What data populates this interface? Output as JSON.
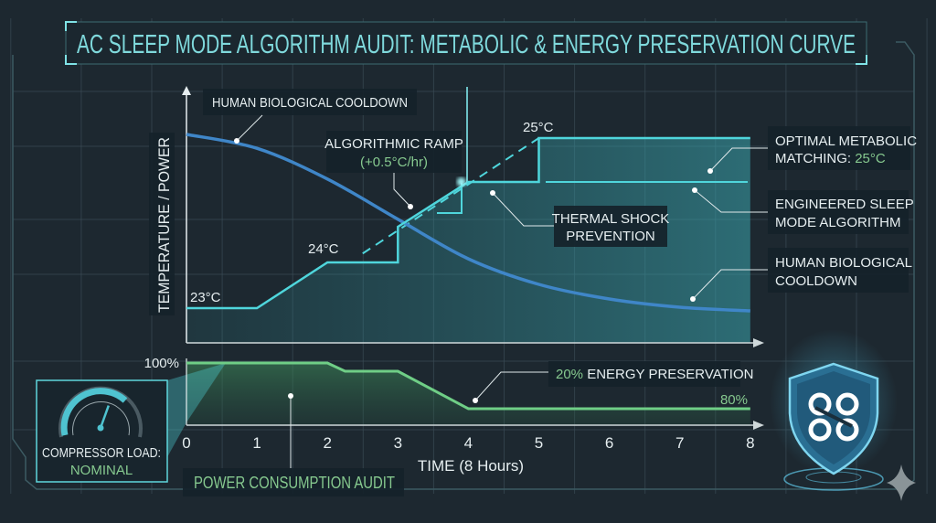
{
  "title": "AC SLEEP MODE ALGORITHM AUDIT: METABOLIC & ENERGY PRESERVATION CURVE",
  "colors": {
    "background": "#1d2830",
    "sleep_mode_line": "#4fd6dc",
    "human_line": "#3f86c8",
    "power_line": "#6fce86",
    "accent_green": "#86c98f",
    "title_text": "#7fd9dc"
  },
  "callouts": {
    "human_top": "HUMAN BIOLOGICAL COOLDOWN",
    "ramp": [
      "ALGORITHMIC RAMP",
      "(+0.5°C/hr)"
    ],
    "thermal_shock": [
      "THERMAL SHOCK",
      "PREVENTION"
    ],
    "optimal": [
      "OPTIMAL METABOLIC",
      "MATCHING: ",
      "25°C"
    ],
    "engineered": [
      "ENGINEERED SLEEP",
      "MODE ALGORITHM"
    ],
    "human_right": [
      "HUMAN BIOLOGICAL",
      "COOLDOWN"
    ],
    "energy": [
      "20%",
      " ENERGY PRESERVATION"
    ],
    "power_audit": "POWER CONSUMPTION AUDIT"
  },
  "gauge": {
    "icon": "speedometer-gauge-icon",
    "label": "COMPRESSOR LOAD:",
    "status": "NOMINAL",
    "level": 0.6
  },
  "badge": {
    "icon": "shield-knot-logo-icon"
  },
  "corner_icon": "sparkle-icon",
  "chart_data": [
    {
      "type": "line",
      "ylabel": "TEMPERATURE / POWER",
      "xlabel": "TIME (8 Hours)",
      "x_ticks": [
        "0",
        "1",
        "2",
        "3",
        "4",
        "5",
        "6",
        "7",
        "8"
      ],
      "xlim": [
        0,
        8
      ],
      "grid": true,
      "point_labels": {
        "t23": "23°C",
        "t24": "24°C",
        "t25": "25°C"
      },
      "series": [
        {
          "name": "ENGINEERED SLEEP MODE ALGORITHM",
          "x": [
            0,
            1,
            2,
            3,
            3,
            4,
            5,
            5,
            8
          ],
          "y": [
            23,
            23,
            24,
            24,
            24.4,
            24.7,
            24.7,
            25,
            25
          ]
        },
        {
          "name": "HUMAN BIOLOGICAL COOLDOWN",
          "x": [
            0,
            1,
            2,
            3,
            4,
            5,
            6,
            7,
            8
          ],
          "y": [
            25.04,
            24.93,
            24.72,
            24.45,
            24.04,
            23.52,
            23.2,
            23.02,
            22.94
          ]
        }
      ],
      "ramp_dashed": {
        "x": [
          2.5,
          5
        ],
        "y": [
          24.1,
          25
        ]
      }
    },
    {
      "type": "area",
      "x_ticks": [
        "0",
        "1",
        "2",
        "3",
        "4",
        "5",
        "6",
        "7",
        "8"
      ],
      "xlabel": "TIME (8 Hours)",
      "y_labels": {
        "max": "100%",
        "end": "80%"
      },
      "series": [
        {
          "x": [
            0,
            2,
            2.25,
            3,
            4,
            8
          ],
          "y": [
            100,
            100,
            96.4,
            96.4,
            80,
            80
          ]
        }
      ]
    }
  ]
}
